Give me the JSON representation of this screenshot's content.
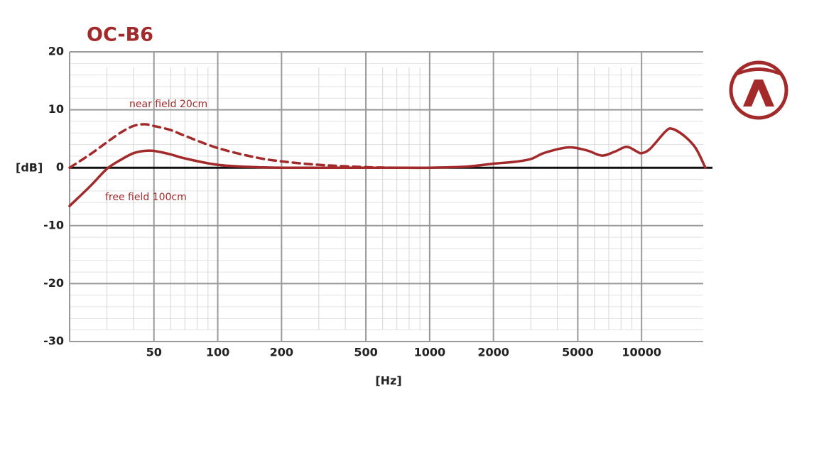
{
  "chart_data": {
    "type": "line",
    "title": "OC-B6",
    "x_label": "[Hz]",
    "y_label": "[dB]",
    "log_x": true,
    "grid": true,
    "xlim": [
      20,
      20000
    ],
    "ylim": [
      -30,
      20
    ],
    "xticks": [
      50,
      100,
      200,
      500,
      1000,
      2000,
      5000,
      10000
    ],
    "yticks": [
      20,
      10,
      0,
      -10,
      -20,
      -30
    ],
    "x_minor_ticks": [
      30,
      40,
      60,
      70,
      80,
      90,
      300,
      400,
      600,
      700,
      800,
      900,
      3000,
      4000,
      6000,
      7000,
      8000,
      9000
    ],
    "y_minor_ticks": [
      18,
      16,
      14,
      12,
      8,
      6,
      4,
      2,
      -2,
      -4,
      -6,
      -8,
      -12,
      -14,
      -16,
      -18,
      -22,
      -24,
      -26,
      -28
    ],
    "x": [
      20,
      25,
      30,
      35,
      40,
      45,
      50,
      60,
      70,
      100,
      150,
      200,
      300,
      500,
      700,
      1000,
      1500,
      2000,
      2500,
      3000,
      3500,
      4500,
      5500,
      6500,
      7500,
      8500,
      9500,
      10000,
      11000,
      13000,
      14000,
      16000,
      18000,
      20000
    ],
    "series": [
      {
        "name": "near field 20cm",
        "color": "#a32a2a",
        "dashed": true,
        "values": [
          0,
          2.3,
          4.4,
          6.1,
          7.2,
          7.5,
          7.2,
          6.5,
          5.5,
          3.4,
          1.8,
          1.1,
          0.5,
          0.1,
          0,
          null,
          null,
          null,
          null,
          null,
          null,
          null,
          null,
          null,
          null,
          null,
          null,
          null,
          null,
          null,
          null,
          null,
          null,
          null
        ]
      },
      {
        "name": "free field 100cm",
        "color": "#a32a2a",
        "dashed": false,
        "values": [
          -6.6,
          -3.2,
          -0.2,
          1.4,
          2.5,
          2.9,
          2.9,
          2.3,
          1.6,
          0.5,
          0.1,
          0,
          0,
          0,
          0,
          0,
          0.2,
          0.7,
          1.0,
          1.5,
          2.6,
          3.5,
          3.0,
          2.1,
          2.8,
          3.6,
          2.8,
          2.5,
          3.3,
          6.3,
          6.7,
          5.4,
          3.4,
          0
        ]
      }
    ]
  }
}
